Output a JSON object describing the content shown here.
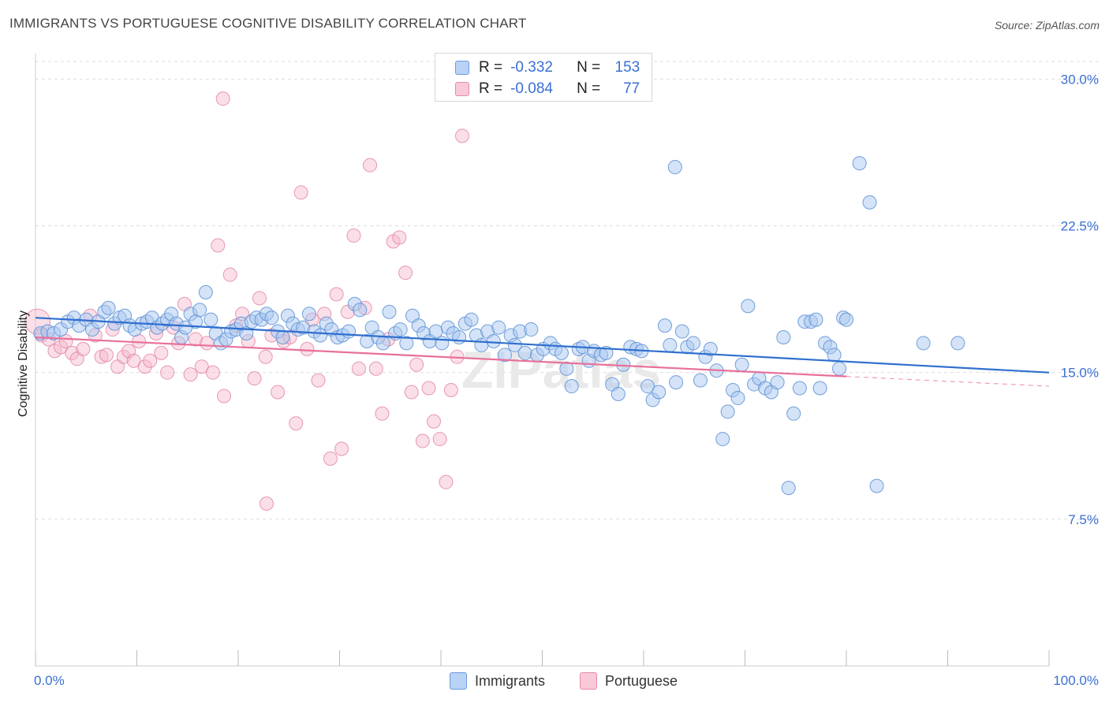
{
  "header": {
    "title": "IMMIGRANTS VS PORTUGUESE COGNITIVE DISABILITY CORRELATION CHART",
    "source": "Source: ZipAtlas.com"
  },
  "legend_top": {
    "rows": [
      {
        "r_label": "R =",
        "r_value": "-0.332",
        "n_label": "N =",
        "n_value": "153"
      },
      {
        "r_label": "R =",
        "r_value": "-0.084",
        "n_label": "N =",
        "n_value": "77"
      }
    ]
  },
  "legend_bottom": {
    "immigrants": "Immigrants",
    "portuguese": "Portuguese"
  },
  "colors": {
    "immigrants_fill": "#a9c8f0",
    "immigrants_stroke": "#5b8fd6",
    "immigrants_line": "#2f6fcf",
    "portuguese_fill": "#f5b8cb",
    "portuguese_stroke": "#e47fa1",
    "portuguese_line": "#e8709a",
    "axis_text": "#3a6fd4",
    "grid": "#dddddd"
  },
  "chart_data": {
    "type": "scatter",
    "title": "IMMIGRANTS VS PORTUGUESE COGNITIVE DISABILITY CORRELATION CHART",
    "xlabel": "",
    "ylabel": "Cognitive Disability",
    "xlim": [
      0,
      100
    ],
    "ylim": [
      0,
      30.9
    ],
    "x_tick_labels": [
      "0.0%",
      "100.0%"
    ],
    "y_ticks": [
      7.5,
      15.0,
      22.5,
      30.0
    ],
    "y_tick_labels": [
      "7.5%",
      "15.0%",
      "22.5%",
      "30.0%"
    ],
    "grid": true,
    "legend_position": "bottom",
    "watermark": "ZIPatlas",
    "series": [
      {
        "name": "Immigrants",
        "r": -0.332,
        "n": 153,
        "trend": {
          "x": [
            0,
            100
          ],
          "y": [
            17.8,
            15.0
          ]
        },
        "points": [
          [
            0.5,
            17.0
          ],
          [
            1.2,
            17.1
          ],
          [
            1.8,
            17.0
          ],
          [
            2.5,
            17.2
          ],
          [
            3.2,
            17.6
          ],
          [
            3.8,
            17.8
          ],
          [
            4.3,
            17.4
          ],
          [
            5.0,
            17.7
          ],
          [
            5.6,
            17.2
          ],
          [
            6.2,
            17.6
          ],
          [
            6.8,
            18.1
          ],
          [
            7.2,
            18.3
          ],
          [
            7.8,
            17.5
          ],
          [
            8.3,
            17.8
          ],
          [
            8.8,
            17.9
          ],
          [
            9.3,
            17.4
          ],
          [
            9.8,
            17.2
          ],
          [
            10.5,
            17.5
          ],
          [
            11.0,
            17.6
          ],
          [
            11.5,
            17.8
          ],
          [
            12.0,
            17.3
          ],
          [
            12.5,
            17.5
          ],
          [
            13.0,
            17.7
          ],
          [
            13.4,
            18.0
          ],
          [
            13.9,
            17.5
          ],
          [
            14.4,
            16.8
          ],
          [
            14.8,
            17.3
          ],
          [
            15.3,
            18.0
          ],
          [
            15.8,
            17.6
          ],
          [
            16.2,
            18.2
          ],
          [
            16.8,
            19.1
          ],
          [
            17.3,
            17.7
          ],
          [
            17.8,
            17.0
          ],
          [
            18.3,
            16.5
          ],
          [
            18.8,
            16.7
          ],
          [
            19.3,
            17.1
          ],
          [
            19.8,
            17.2
          ],
          [
            20.3,
            17.5
          ],
          [
            20.8,
            17.0
          ],
          [
            21.3,
            17.6
          ],
          [
            21.8,
            17.8
          ],
          [
            22.3,
            17.7
          ],
          [
            22.8,
            18.0
          ],
          [
            23.3,
            17.8
          ],
          [
            23.9,
            17.1
          ],
          [
            24.4,
            16.8
          ],
          [
            24.9,
            17.9
          ],
          [
            25.4,
            17.5
          ],
          [
            25.9,
            17.2
          ],
          [
            26.4,
            17.3
          ],
          [
            27.0,
            18.0
          ],
          [
            27.5,
            17.1
          ],
          [
            28.1,
            16.9
          ],
          [
            28.7,
            17.5
          ],
          [
            29.2,
            17.2
          ],
          [
            29.8,
            16.8
          ],
          [
            30.3,
            16.9
          ],
          [
            30.9,
            17.1
          ],
          [
            31.5,
            18.5
          ],
          [
            32.0,
            18.2
          ],
          [
            32.7,
            16.6
          ],
          [
            33.2,
            17.3
          ],
          [
            33.8,
            16.8
          ],
          [
            34.3,
            16.5
          ],
          [
            34.9,
            18.1
          ],
          [
            35.5,
            17.0
          ],
          [
            36.0,
            17.2
          ],
          [
            36.6,
            16.5
          ],
          [
            37.2,
            17.9
          ],
          [
            37.8,
            17.4
          ],
          [
            38.3,
            17.0
          ],
          [
            38.9,
            16.6
          ],
          [
            39.5,
            17.1
          ],
          [
            40.1,
            16.5
          ],
          [
            40.7,
            17.3
          ],
          [
            41.2,
            17.0
          ],
          [
            41.8,
            16.8
          ],
          [
            42.4,
            17.5
          ],
          [
            43.0,
            17.7
          ],
          [
            43.5,
            16.9
          ],
          [
            44.0,
            16.4
          ],
          [
            44.6,
            17.1
          ],
          [
            45.2,
            16.6
          ],
          [
            45.7,
            17.3
          ],
          [
            46.3,
            15.9
          ],
          [
            46.9,
            16.9
          ],
          [
            47.3,
            16.4
          ],
          [
            47.8,
            17.1
          ],
          [
            48.3,
            16.0
          ],
          [
            48.9,
            17.2
          ],
          [
            49.5,
            15.9
          ],
          [
            50.1,
            16.2
          ],
          [
            50.8,
            16.5
          ],
          [
            51.3,
            16.2
          ],
          [
            51.9,
            16.0
          ],
          [
            52.4,
            15.2
          ],
          [
            52.9,
            14.3
          ],
          [
            53.6,
            16.2
          ],
          [
            54.0,
            16.3
          ],
          [
            54.6,
            15.6
          ],
          [
            55.1,
            16.1
          ],
          [
            55.8,
            15.9
          ],
          [
            56.3,
            16.0
          ],
          [
            56.9,
            14.4
          ],
          [
            57.5,
            13.9
          ],
          [
            58.0,
            15.4
          ],
          [
            58.7,
            16.3
          ],
          [
            59.3,
            16.2
          ],
          [
            59.8,
            16.1
          ],
          [
            60.4,
            14.3
          ],
          [
            60.9,
            13.6
          ],
          [
            61.5,
            14.0
          ],
          [
            62.1,
            17.4
          ],
          [
            62.6,
            16.4
          ],
          [
            63.2,
            14.5
          ],
          [
            63.8,
            17.1
          ],
          [
            64.3,
            16.3
          ],
          [
            64.9,
            16.5
          ],
          [
            65.6,
            14.6
          ],
          [
            66.1,
            15.8
          ],
          [
            66.6,
            16.2
          ],
          [
            67.2,
            15.1
          ],
          [
            67.8,
            11.6
          ],
          [
            68.3,
            13.0
          ],
          [
            68.8,
            14.1
          ],
          [
            69.3,
            13.7
          ],
          [
            69.7,
            15.4
          ],
          [
            70.3,
            18.4
          ],
          [
            70.9,
            14.4
          ],
          [
            71.4,
            14.7
          ],
          [
            72.0,
            14.2
          ],
          [
            72.6,
            14.0
          ],
          [
            73.2,
            14.5
          ],
          [
            73.8,
            16.8
          ],
          [
            74.3,
            9.1
          ],
          [
            74.8,
            12.9
          ],
          [
            75.4,
            14.2
          ],
          [
            75.9,
            17.6
          ],
          [
            76.5,
            17.6
          ],
          [
            77.0,
            17.7
          ],
          [
            77.4,
            14.2
          ],
          [
            77.9,
            16.5
          ],
          [
            78.4,
            16.3
          ],
          [
            78.8,
            15.9
          ],
          [
            79.3,
            15.2
          ],
          [
            79.7,
            17.8
          ],
          [
            80.0,
            17.7
          ],
          [
            81.3,
            25.7
          ],
          [
            82.3,
            23.7
          ],
          [
            63.1,
            25.5
          ],
          [
            83.0,
            9.2
          ],
          [
            87.6,
            16.5
          ],
          [
            91.0,
            16.5
          ]
        ]
      },
      {
        "name": "Portuguese",
        "r": -0.084,
        "n": 77,
        "trend": {
          "x": [
            0,
            80
          ],
          "y": [
            16.8,
            14.8
          ]
        },
        "trend_dashed": {
          "x": [
            80,
            100
          ],
          "y": [
            14.8,
            14.3
          ]
        },
        "points": [
          [
            0.2,
            17.6
          ],
          [
            0.6,
            16.9
          ],
          [
            1.3,
            16.7
          ],
          [
            1.9,
            16.1
          ],
          [
            2.5,
            16.3
          ],
          [
            3.0,
            16.6
          ],
          [
            3.6,
            16.0
          ],
          [
            4.1,
            15.7
          ],
          [
            4.7,
            16.2
          ],
          [
            5.4,
            17.9
          ],
          [
            5.9,
            16.9
          ],
          [
            6.5,
            15.8
          ],
          [
            7.0,
            15.9
          ],
          [
            7.6,
            17.2
          ],
          [
            8.1,
            15.3
          ],
          [
            8.7,
            15.8
          ],
          [
            9.2,
            16.1
          ],
          [
            9.7,
            15.6
          ],
          [
            10.2,
            16.6
          ],
          [
            10.8,
            15.3
          ],
          [
            11.3,
            15.6
          ],
          [
            11.9,
            17.0
          ],
          [
            12.4,
            16.0
          ],
          [
            13.0,
            15.0
          ],
          [
            13.6,
            17.3
          ],
          [
            14.1,
            16.5
          ],
          [
            14.7,
            18.5
          ],
          [
            15.3,
            14.9
          ],
          [
            15.8,
            16.7
          ],
          [
            16.4,
            15.3
          ],
          [
            16.9,
            16.5
          ],
          [
            17.5,
            15.0
          ],
          [
            18.0,
            21.5
          ],
          [
            18.6,
            13.8
          ],
          [
            19.2,
            20.0
          ],
          [
            19.8,
            17.4
          ],
          [
            20.4,
            18.0
          ],
          [
            21.0,
            16.6
          ],
          [
            21.6,
            14.7
          ],
          [
            22.1,
            18.8
          ],
          [
            22.7,
            15.8
          ],
          [
            23.3,
            16.9
          ],
          [
            23.9,
            14.0
          ],
          [
            24.5,
            16.6
          ],
          [
            25.1,
            16.8
          ],
          [
            25.7,
            12.4
          ],
          [
            26.2,
            24.2
          ],
          [
            26.8,
            16.2
          ],
          [
            27.3,
            17.7
          ],
          [
            27.9,
            14.6
          ],
          [
            28.5,
            18.0
          ],
          [
            29.1,
            10.6
          ],
          [
            29.7,
            19.0
          ],
          [
            30.2,
            11.1
          ],
          [
            30.8,
            18.1
          ],
          [
            31.4,
            22.0
          ],
          [
            31.9,
            15.2
          ],
          [
            32.5,
            18.3
          ],
          [
            33.0,
            25.6
          ],
          [
            33.6,
            15.2
          ],
          [
            34.2,
            12.9
          ],
          [
            34.8,
            16.7
          ],
          [
            35.3,
            21.7
          ],
          [
            35.9,
            21.9
          ],
          [
            36.5,
            20.1
          ],
          [
            37.1,
            14.0
          ],
          [
            37.6,
            15.4
          ],
          [
            38.2,
            11.5
          ],
          [
            38.8,
            14.2
          ],
          [
            39.3,
            12.5
          ],
          [
            39.9,
            11.6
          ],
          [
            40.5,
            9.4
          ],
          [
            41.0,
            14.1
          ],
          [
            41.6,
            15.8
          ],
          [
            42.1,
            27.1
          ],
          [
            18.5,
            29.0
          ],
          [
            22.8,
            8.3
          ]
        ]
      }
    ]
  }
}
